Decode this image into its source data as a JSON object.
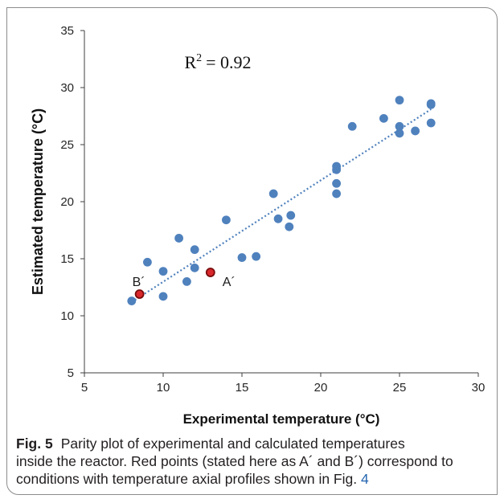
{
  "caption": {
    "label": "Fig. 5",
    "lines": [
      "Parity plot of experimental and calculated temperatures",
      "inside the reactor. Red points (stated here as A´ and B´) correspond to",
      "conditions with temperature axial profiles shown in Fig."
    ],
    "figure_ref": "4"
  },
  "colors": {
    "frame": "#8c8c8c",
    "link": "#2566b0"
  },
  "chart_data": {
    "type": "scatter",
    "xlabel": "Experimental temperature (°C)",
    "ylabel": "Estimated temperature (°C)",
    "xlim": [
      5,
      30
    ],
    "ylim": [
      5,
      35
    ],
    "x_ticks": [
      5,
      10,
      15,
      20,
      25,
      30
    ],
    "y_ticks": [
      5,
      10,
      15,
      20,
      25,
      30,
      35
    ],
    "grid": false,
    "series": [
      {
        "color": "#4f81bd",
        "x": [
          8.0,
          9.0,
          10.0,
          10.0,
          11.0,
          11.5,
          12.0,
          12.0,
          14.0,
          15.0,
          15.9,
          17.0,
          17.3,
          18.0,
          18.1,
          21.0,
          21.0,
          21.0,
          21.0,
          22.0,
          24.0,
          25.0,
          25.0,
          25.0,
          26.0,
          27.0,
          27.0,
          27.0
        ],
        "y": [
          11.3,
          14.7,
          13.9,
          11.7,
          16.8,
          13.0,
          15.8,
          14.2,
          18.4,
          15.1,
          15.2,
          20.7,
          18.5,
          17.8,
          18.8,
          23.1,
          22.8,
          21.6,
          20.7,
          26.6,
          27.3,
          28.9,
          26.6,
          26.0,
          26.2,
          28.6,
          28.5,
          26.9
        ]
      },
      {
        "color": "#d9282c",
        "edge_color": "#7a0c0c",
        "points": [
          {
            "x": 13.0,
            "y": 13.8,
            "label": "A´",
            "label_position": "right"
          },
          {
            "x": 8.5,
            "y": 11.9,
            "label": "B´",
            "label_position": "above"
          }
        ]
      }
    ],
    "trendline": {
      "type": "linear",
      "style": "dotted",
      "color": "#4f81bd",
      "x": [
        8,
        27
      ],
      "y": [
        11.2,
        28.1
      ]
    },
    "annotations": {
      "r_squared": {
        "symbol": "R",
        "exponent": "2",
        "value_text": "= 0.92"
      }
    }
  }
}
